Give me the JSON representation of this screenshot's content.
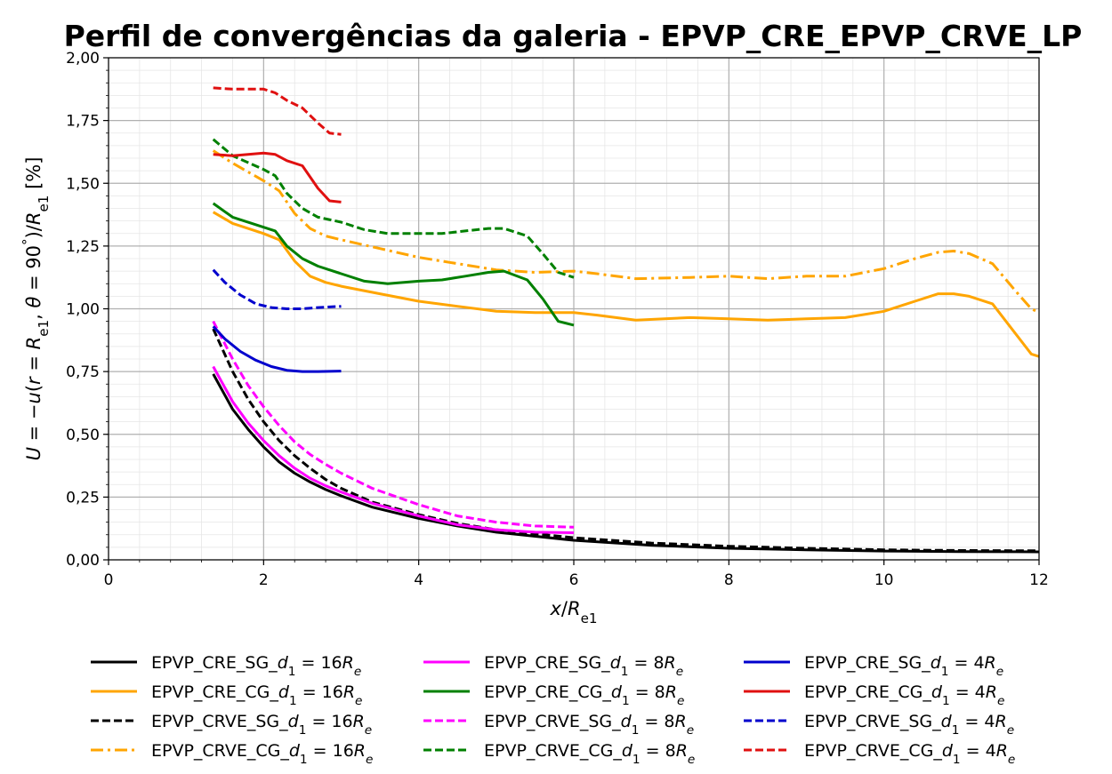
{
  "chart_data": {
    "type": "line",
    "title": "Perfil de convergências da galeria - EPVP_CRE_EPVP_CRVE_LP",
    "xlabel": "x/R_e1",
    "ylabel": "U = −u(r = R_e1, θ = 90°)/R_e1 [%]",
    "xlim": [
      0,
      12
    ],
    "ylim": [
      0,
      2
    ],
    "x_ticks": [
      0,
      2,
      4,
      6,
      8,
      10,
      12
    ],
    "x_tick_labels": [
      "0",
      "2",
      "4",
      "6",
      "8",
      "10",
      "12"
    ],
    "y_ticks": [
      0,
      0.25,
      0.5,
      0.75,
      1.0,
      1.25,
      1.5,
      1.75,
      2.0
    ],
    "y_tick_labels": [
      "0,00",
      "0,25",
      "0,50",
      "0,75",
      "1,00",
      "1,25",
      "1,50",
      "1,75",
      "2,00"
    ],
    "grid": true,
    "minor_grid": true,
    "legend_position": "bottom",
    "series": [
      {
        "name": "EPVP_CRE_SG_d1 = 16Re",
        "label": {
          "base": "EPVP_CRE_SG_",
          "rhs": "16"
        },
        "color": "#000000",
        "dash": "solid",
        "x": [
          1.35,
          1.6,
          1.8,
          2.0,
          2.2,
          2.4,
          2.6,
          2.8,
          3.0,
          3.4,
          4.0,
          4.5,
          5.0,
          6.0,
          7.0,
          8.0,
          9.0,
          10.0,
          11.0,
          12.0
        ],
        "y": [
          0.74,
          0.6,
          0.52,
          0.45,
          0.39,
          0.345,
          0.31,
          0.28,
          0.255,
          0.21,
          0.165,
          0.135,
          0.11,
          0.078,
          0.058,
          0.046,
          0.04,
          0.035,
          0.033,
          0.032
        ]
      },
      {
        "name": "EPVP_CRE_CG_d1 = 16Re",
        "label": {
          "base": "EPVP_CRE_CG_",
          "rhs": "16"
        },
        "color": "#ffa500",
        "dash": "solid",
        "x": [
          1.35,
          1.6,
          2.0,
          2.2,
          2.4,
          2.6,
          2.8,
          3.0,
          3.5,
          4.0,
          4.5,
          5.0,
          5.5,
          6.0,
          6.3,
          6.8,
          7.5,
          8.0,
          8.5,
          9.0,
          9.5,
          10.0,
          10.4,
          10.7,
          10.9,
          11.1,
          11.4,
          11.7,
          11.9,
          12.0
        ],
        "y": [
          1.385,
          1.34,
          1.3,
          1.275,
          1.19,
          1.13,
          1.105,
          1.09,
          1.06,
          1.03,
          1.01,
          0.99,
          0.985,
          0.985,
          0.975,
          0.955,
          0.965,
          0.96,
          0.955,
          0.96,
          0.965,
          0.99,
          1.03,
          1.06,
          1.06,
          1.05,
          1.02,
          0.9,
          0.82,
          0.81
        ]
      },
      {
        "name": "EPVP_CRVE_SG_d1 = 16Re",
        "label": {
          "base": "EPVP_CRVE_SG_",
          "rhs": "16"
        },
        "color": "#000000",
        "dash": "dashed",
        "x": [
          1.35,
          1.6,
          1.8,
          2.0,
          2.2,
          2.4,
          2.6,
          2.8,
          3.0,
          3.4,
          4.0,
          4.5,
          5.0,
          6.0,
          7.0,
          8.0,
          9.0,
          10.0,
          11.0,
          12.0
        ],
        "y": [
          0.92,
          0.75,
          0.64,
          0.55,
          0.475,
          0.415,
          0.365,
          0.32,
          0.285,
          0.23,
          0.18,
          0.145,
          0.12,
          0.088,
          0.067,
          0.054,
          0.046,
          0.04,
          0.037,
          0.036
        ]
      },
      {
        "name": "EPVP_CRVE_CG_d1 = 16Re",
        "label": {
          "base": "EPVP_CRVE_CG_",
          "rhs": "16"
        },
        "color": "#ffa500",
        "dash": "dashdot",
        "x": [
          1.35,
          1.6,
          2.0,
          2.2,
          2.4,
          2.6,
          2.8,
          3.0,
          3.5,
          4.0,
          4.5,
          5.0,
          5.5,
          6.0,
          6.3,
          6.8,
          7.5,
          8.0,
          8.5,
          9.0,
          9.5,
          10.0,
          10.4,
          10.7,
          10.9,
          11.1,
          11.4,
          11.7,
          11.9,
          12.0
        ],
        "y": [
          1.63,
          1.58,
          1.51,
          1.47,
          1.38,
          1.32,
          1.29,
          1.275,
          1.24,
          1.205,
          1.18,
          1.155,
          1.145,
          1.15,
          1.14,
          1.12,
          1.125,
          1.13,
          1.12,
          1.13,
          1.13,
          1.16,
          1.2,
          1.225,
          1.23,
          1.22,
          1.18,
          1.07,
          1.0,
          0.985
        ]
      },
      {
        "name": "EPVP_CRE_SG_d1 = 8Re",
        "label": {
          "base": "EPVP_CRE_SG_",
          "rhs": "8"
        },
        "color": "#ff00ff",
        "dash": "solid",
        "x": [
          1.35,
          1.6,
          1.8,
          2.0,
          2.2,
          2.4,
          2.6,
          2.8,
          3.0,
          3.4,
          4.0,
          4.5,
          5.0,
          5.5,
          6.0
        ],
        "y": [
          0.77,
          0.63,
          0.545,
          0.475,
          0.415,
          0.365,
          0.325,
          0.295,
          0.27,
          0.225,
          0.175,
          0.14,
          0.12,
          0.11,
          0.108
        ]
      },
      {
        "name": "EPVP_CRE_CG_d1 = 8Re",
        "label": {
          "base": "EPVP_CRE_CG_",
          "rhs": "8"
        },
        "color": "#008000",
        "dash": "solid",
        "x": [
          1.35,
          1.6,
          2.0,
          2.15,
          2.3,
          2.5,
          2.7,
          3.0,
          3.3,
          3.6,
          4.0,
          4.3,
          4.6,
          4.9,
          5.1,
          5.4,
          5.6,
          5.8,
          6.0
        ],
        "y": [
          1.42,
          1.365,
          1.325,
          1.31,
          1.25,
          1.2,
          1.17,
          1.14,
          1.11,
          1.1,
          1.11,
          1.115,
          1.13,
          1.145,
          1.15,
          1.115,
          1.04,
          0.95,
          0.935
        ]
      },
      {
        "name": "EPVP_CRVE_SG_d1 = 8Re",
        "label": {
          "base": "EPVP_CRVE_SG_",
          "rhs": "8"
        },
        "color": "#ff00ff",
        "dash": "dashed",
        "x": [
          1.35,
          1.6,
          1.8,
          2.0,
          2.2,
          2.4,
          2.6,
          2.8,
          3.0,
          3.4,
          4.0,
          4.5,
          5.0,
          5.5,
          6.0
        ],
        "y": [
          0.95,
          0.8,
          0.695,
          0.61,
          0.535,
          0.47,
          0.42,
          0.38,
          0.345,
          0.285,
          0.22,
          0.175,
          0.15,
          0.135,
          0.13
        ]
      },
      {
        "name": "EPVP_CRVE_CG_d1 = 8Re",
        "label": {
          "base": "EPVP_CRVE_CG_",
          "rhs": "8"
        },
        "color": "#008000",
        "dash": "dashed",
        "x": [
          1.35,
          1.6,
          2.0,
          2.15,
          2.3,
          2.5,
          2.7,
          3.0,
          3.3,
          3.6,
          4.0,
          4.3,
          4.6,
          4.9,
          5.1,
          5.4,
          5.6,
          5.8,
          6.0
        ],
        "y": [
          1.675,
          1.61,
          1.555,
          1.53,
          1.46,
          1.4,
          1.365,
          1.345,
          1.315,
          1.3,
          1.3,
          1.3,
          1.31,
          1.32,
          1.32,
          1.29,
          1.22,
          1.145,
          1.125
        ]
      },
      {
        "name": "EPVP_CRE_SG_d1 = 4Re",
        "label": {
          "base": "EPVP_CRE_SG_",
          "rhs": "4"
        },
        "color": "#0000cd",
        "dash": "solid",
        "x": [
          1.35,
          1.5,
          1.7,
          1.9,
          2.1,
          2.3,
          2.5,
          2.7,
          3.0
        ],
        "y": [
          0.93,
          0.88,
          0.83,
          0.795,
          0.77,
          0.755,
          0.75,
          0.75,
          0.752
        ]
      },
      {
        "name": "EPVP_CRE_CG_d1 = 4Re",
        "label": {
          "base": "EPVP_CRE_CG_",
          "rhs": "4"
        },
        "color": "#e01010",
        "dash": "solid",
        "x": [
          1.35,
          1.6,
          1.8,
          2.0,
          2.15,
          2.3,
          2.5,
          2.7,
          2.85,
          3.0
        ],
        "y": [
          1.615,
          1.61,
          1.615,
          1.62,
          1.615,
          1.59,
          1.57,
          1.48,
          1.43,
          1.425
        ]
      },
      {
        "name": "EPVP_CRVE_SG_d1 = 4Re",
        "label": {
          "base": "EPVP_CRVE_SG_",
          "rhs": "4"
        },
        "color": "#0000cd",
        "dash": "dashed",
        "x": [
          1.35,
          1.5,
          1.7,
          1.9,
          2.1,
          2.3,
          2.5,
          2.7,
          3.0
        ],
        "y": [
          1.155,
          1.105,
          1.055,
          1.02,
          1.005,
          1.0,
          1.0,
          1.005,
          1.01
        ]
      },
      {
        "name": "EPVP_CRVE_CG_d1 = 4Re",
        "label": {
          "base": "EPVP_CRVE_CG_",
          "rhs": "4"
        },
        "color": "#e01010",
        "dash": "dashed",
        "x": [
          1.35,
          1.6,
          1.8,
          2.0,
          2.15,
          2.3,
          2.5,
          2.7,
          2.85,
          3.0
        ],
        "y": [
          1.88,
          1.875,
          1.875,
          1.875,
          1.86,
          1.83,
          1.8,
          1.74,
          1.7,
          1.695
        ]
      }
    ]
  }
}
